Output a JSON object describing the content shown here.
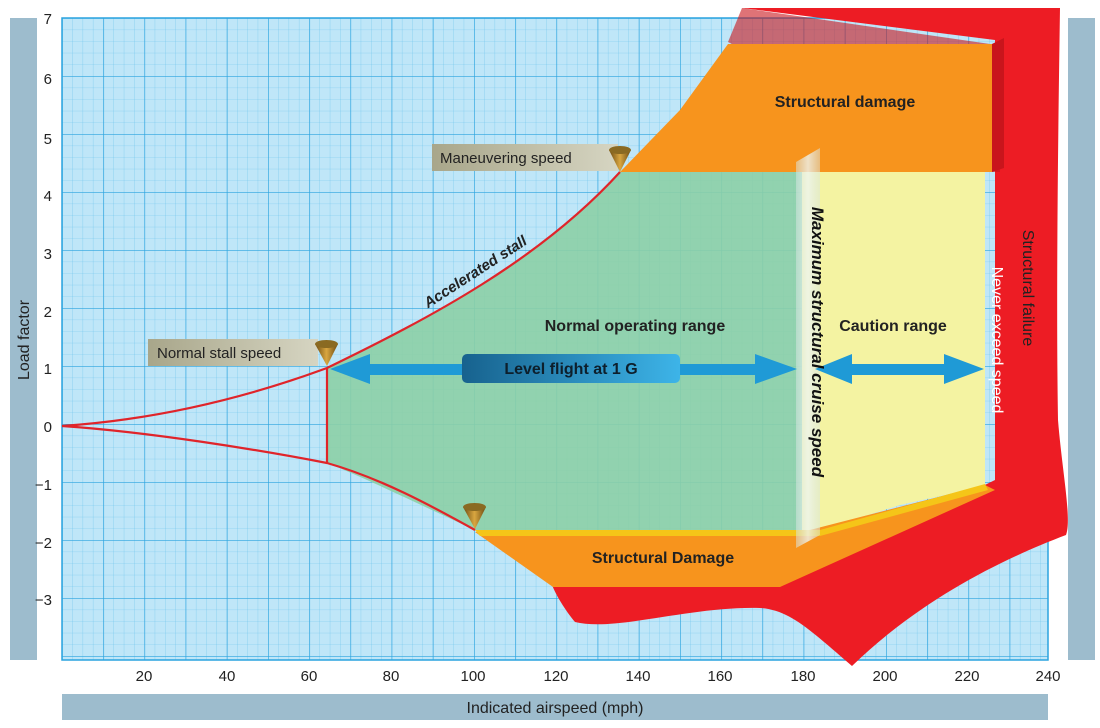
{
  "axes": {
    "x_label": "Indicated airspeed (mph)",
    "y_label": "Load factor",
    "x_ticks": [
      "20",
      "40",
      "60",
      "80",
      "100",
      "120",
      "140",
      "160",
      "180",
      "200",
      "220",
      "240"
    ],
    "y_ticks": [
      "7",
      "6",
      "5",
      "4",
      "3",
      "2",
      "1",
      "0",
      "−1",
      "−2",
      "−3"
    ]
  },
  "regions": {
    "structural_damage_top": "Structural damage",
    "structural_damage_bottom": "Structural Damage",
    "normal_operating_range": "Normal operating range",
    "caution_range": "Caution range",
    "structural_failure": "Structural  failure"
  },
  "lines": {
    "accelerated_stall": "Accelerated stall",
    "max_structural_cruise": "Maximum structural cruise speed",
    "never_exceed": "Never exceed speed"
  },
  "callouts": {
    "maneuvering_speed": "Maneuvering speed",
    "normal_stall_speed": "Normal stall speed",
    "level_flight": "Level flight at 1 G"
  },
  "colors": {
    "grid_bg": "#bfe6f8",
    "grid_line": "#3fb0e6",
    "normal": "#8ccfa6",
    "caution": "#f4f3a2",
    "damage": "#f7941d",
    "failure": "#ed1c24",
    "curve": "#e0242a",
    "arrow": "#1f9ad6"
  }
}
